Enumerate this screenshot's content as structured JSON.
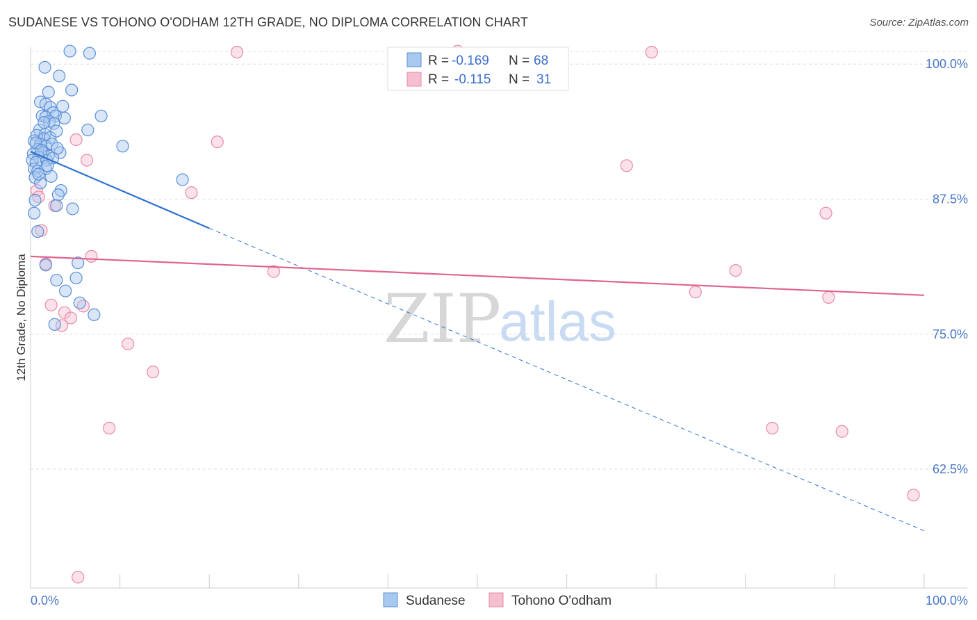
{
  "title": "SUDANESE VS TOHONO O'ODHAM 12TH GRADE, NO DIPLOMA CORRELATION CHART",
  "source": "Source: ZipAtlas.com",
  "watermark": {
    "zip": "ZIP",
    "atlas": "atlas"
  },
  "colors": {
    "blue_fill": "#a9c8f0",
    "blue_stroke": "#5b8fd6",
    "blue_line": "#2f74d0",
    "pink_fill": "#f6bfd0",
    "pink_stroke": "#e88aa8",
    "pink_line": "#e0648e",
    "grid": "#dddddd",
    "label": "#4a78c8"
  },
  "legend": {
    "rows": [
      {
        "r_label": "R =",
        "r_value": "-0.169",
        "n_label": "N =",
        "n_value": "68"
      },
      {
        "r_label": "R =",
        "r_value": "-0.115",
        "n_label": "N =",
        "n_value": "31"
      }
    ]
  },
  "chart_data": {
    "type": "scatter",
    "title": "SUDANESE VS TOHONO O'ODHAM 12TH GRADE, NO DIPLOMA CORRELATION CHART",
    "xlabel": "",
    "ylabel": "12th Grade, No Diploma",
    "xlim": [
      0,
      100
    ],
    "ylim": [
      51.5,
      102.2
    ],
    "x_tick_labels": [
      "0.0%",
      "100.0%"
    ],
    "y_ticks": [
      100,
      87.5,
      75,
      62.5
    ],
    "y_tick_labels": [
      "100.0%",
      "87.5%",
      "75.0%",
      "62.5%"
    ],
    "legend_bottom": [
      "Sudanese",
      "Tohono O'odham"
    ],
    "series": [
      {
        "name": "Sudanese",
        "R": -0.169,
        "N": 68,
        "trend": {
          "x0": 0,
          "y0": 91.9,
          "x1": 20,
          "y1": 84.8,
          "dash_to_x": 100,
          "dash_to_y": 56.8
        },
        "points": [
          [
            4.4,
            101.2
          ],
          [
            6.6,
            101.0
          ],
          [
            1.6,
            99.7
          ],
          [
            3.2,
            98.9
          ],
          [
            4.6,
            97.6
          ],
          [
            2.0,
            97.4
          ],
          [
            1.1,
            96.5
          ],
          [
            1.7,
            96.3
          ],
          [
            2.2,
            96.0
          ],
          [
            3.6,
            96.1
          ],
          [
            2.5,
            95.5
          ],
          [
            1.3,
            95.2
          ],
          [
            1.7,
            95.1
          ],
          [
            2.8,
            95.2
          ],
          [
            3.8,
            95.0
          ],
          [
            7.9,
            95.2
          ],
          [
            2.1,
            94.7
          ],
          [
            2.6,
            94.5
          ],
          [
            1.0,
            93.9
          ],
          [
            1.6,
            93.5
          ],
          [
            0.7,
            93.4
          ],
          [
            1.5,
            93.1
          ],
          [
            2.2,
            93.2
          ],
          [
            6.4,
            93.9
          ],
          [
            0.4,
            92.9
          ],
          [
            1.1,
            92.6
          ],
          [
            1.7,
            92.4
          ],
          [
            2.4,
            92.6
          ],
          [
            0.8,
            92.1
          ],
          [
            1.4,
            91.8
          ],
          [
            2.0,
            91.5
          ],
          [
            3.3,
            91.8
          ],
          [
            10.3,
            92.4
          ],
          [
            0.3,
            91.7
          ],
          [
            0.9,
            91.4
          ],
          [
            0.2,
            91.1
          ],
          [
            0.6,
            90.9
          ],
          [
            1.8,
            91.1
          ],
          [
            0.4,
            90.3
          ],
          [
            0.8,
            90.1
          ],
          [
            1.7,
            90.3
          ],
          [
            2.3,
            89.6
          ],
          [
            17.0,
            89.3
          ],
          [
            0.5,
            89.5
          ],
          [
            1.1,
            89.0
          ],
          [
            3.4,
            88.3
          ],
          [
            3.1,
            87.9
          ],
          [
            0.5,
            87.4
          ],
          [
            2.9,
            86.9
          ],
          [
            4.7,
            86.6
          ],
          [
            0.4,
            86.2
          ],
          [
            0.8,
            84.5
          ],
          [
            1.7,
            81.4
          ],
          [
            5.3,
            81.6
          ],
          [
            2.9,
            80.0
          ],
          [
            5.1,
            80.2
          ],
          [
            3.9,
            79.0
          ],
          [
            5.5,
            77.9
          ],
          [
            7.1,
            76.8
          ],
          [
            2.7,
            75.9
          ],
          [
            1.5,
            94.6
          ],
          [
            2.9,
            93.8
          ],
          [
            0.6,
            92.7
          ],
          [
            1.2,
            92.0
          ],
          [
            2.5,
            91.3
          ],
          [
            0.9,
            89.8
          ],
          [
            1.9,
            90.6
          ],
          [
            3.0,
            92.2
          ]
        ]
      },
      {
        "name": "Tohono O'odham",
        "R": -0.115,
        "N": 31,
        "trend": {
          "x0": 0,
          "y0": 82.2,
          "x1": 100,
          "y1": 78.6
        },
        "points": [
          [
            23.1,
            101.1
          ],
          [
            47.8,
            101.2
          ],
          [
            69.5,
            101.1
          ],
          [
            5.1,
            93.0
          ],
          [
            20.9,
            92.8
          ],
          [
            6.3,
            91.1
          ],
          [
            66.7,
            90.6
          ],
          [
            0.7,
            88.3
          ],
          [
            0.9,
            87.7
          ],
          [
            18.0,
            88.1
          ],
          [
            2.7,
            86.9
          ],
          [
            89.0,
            86.2
          ],
          [
            1.2,
            84.6
          ],
          [
            6.8,
            82.2
          ],
          [
            1.7,
            81.5
          ],
          [
            27.2,
            80.8
          ],
          [
            78.9,
            80.9
          ],
          [
            74.4,
            78.9
          ],
          [
            89.3,
            78.4
          ],
          [
            2.3,
            77.7
          ],
          [
            3.8,
            77.0
          ],
          [
            5.9,
            77.6
          ],
          [
            4.5,
            76.5
          ],
          [
            3.5,
            75.8
          ],
          [
            10.9,
            74.1
          ],
          [
            13.7,
            71.5
          ],
          [
            8.8,
            66.3
          ],
          [
            83.0,
            66.3
          ],
          [
            90.8,
            66.0
          ],
          [
            98.8,
            60.1
          ],
          [
            5.3,
            52.5
          ]
        ]
      }
    ]
  }
}
